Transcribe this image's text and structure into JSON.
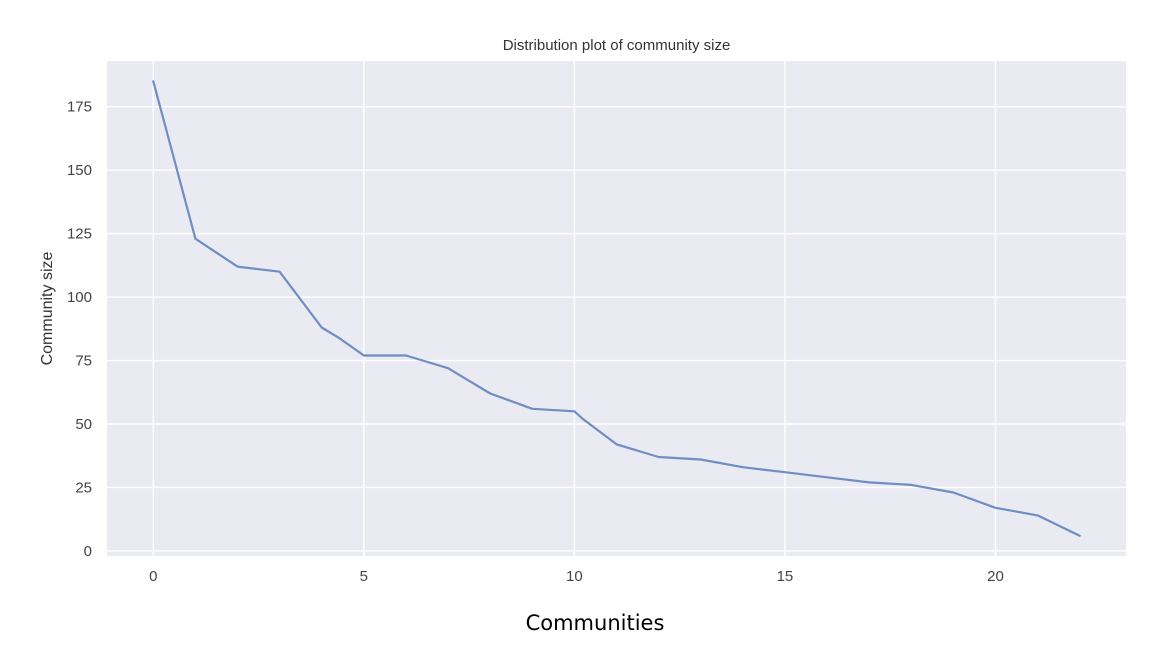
{
  "chart_data": {
    "type": "line",
    "title": "Distribution plot of community size",
    "xlabel": "Communities",
    "ylabel": "Community size",
    "x": [
      0,
      1,
      2,
      3,
      4,
      4.4,
      5,
      6,
      7,
      8,
      9,
      10,
      10.2,
      11,
      12,
      13,
      14,
      15,
      16,
      17,
      18,
      19,
      20,
      21,
      22
    ],
    "y": [
      185,
      123,
      112,
      110,
      88,
      84,
      77,
      77,
      72,
      62,
      56,
      55,
      52,
      42,
      37,
      36,
      33,
      31,
      29,
      27,
      26,
      23,
      17,
      14,
      6
    ],
    "xlim": [
      -1.1,
      23.1
    ],
    "ylim": [
      -2,
      193
    ],
    "xticks": [
      0,
      5,
      10,
      15,
      20
    ],
    "yticks": [
      0,
      25,
      50,
      75,
      100,
      125,
      150,
      175
    ],
    "grid": true,
    "legend": "none",
    "colors": {
      "plot_background": "#eaeaf2",
      "grid": "#ffffff",
      "line": "#6f8ec2"
    }
  }
}
